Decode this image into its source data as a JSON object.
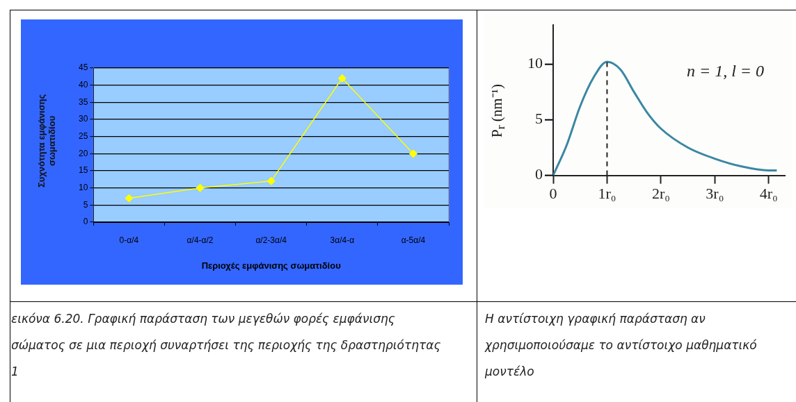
{
  "chart_data": [
    {
      "type": "line",
      "categories": [
        "0-α/4",
        "α/4-α/2",
        "α/2-3α/4",
        "3α/4-α",
        "α-5α/4"
      ],
      "series": [
        {
          "color": "#ffff00",
          "values": [
            7,
            10,
            12,
            42,
            20
          ]
        }
      ],
      "xlabel": "Περιοχές εμφάνισης σωματιδίου",
      "ylabel": "Συχνότητα εμφάνισης σωματιδίου",
      "ylim": [
        0,
        45
      ],
      "yticks": [
        0,
        5,
        10,
        15,
        20,
        25,
        30,
        35,
        40,
        45
      ],
      "grid": "y",
      "marker": "diamond",
      "legend": false,
      "annotations": [
        "εικόνα 6.20. Γραφική παράσταση των μεγεθών φορές εμφάνισης σώματος σε μια περιοχή συναρτήσει της περιοχής της δραστηριότητας 1"
      ]
    },
    {
      "type": "line",
      "x": [
        0,
        0.25,
        0.5,
        0.75,
        1,
        1.25,
        1.5,
        1.75,
        2,
        2.5,
        3,
        3.5,
        4,
        4.15
      ],
      "series": [
        {
          "color": "#3a87a3",
          "values": [
            0,
            2.7,
            6.2,
            8.8,
            10.2,
            9.5,
            7.5,
            5.6,
            4.2,
            2.5,
            1.5,
            0.8,
            0.45,
            0.45
          ]
        }
      ],
      "ylabel": "P$_{r}$ (nm⁻¹)",
      "xlim": [
        0,
        4.3
      ],
      "xticks": [
        0,
        {
          "value": 1,
          "label": "1r₀"
        },
        {
          "value": 2,
          "label": "2r₀"
        },
        {
          "value": 3,
          "label": "3r₀"
        },
        {
          "value": 4,
          "label": "4r₀"
        }
      ],
      "ylim": [
        0,
        13.5
      ],
      "yticks": [
        0,
        5,
        10
      ],
      "grid": false,
      "marker": "none",
      "legend": false,
      "ref_lines": [
        {
          "axis": "x",
          "value": 1,
          "line_style": "dashed",
          "color": "#222222"
        }
      ],
      "annotations": [
        "n = 1, l = 0",
        "Η αντίστοιχη γραφική παράσταση αν χρησιμοποιούσαμε το αντίστοιχο μαθηματικό μοντέλο"
      ]
    }
  ]
}
